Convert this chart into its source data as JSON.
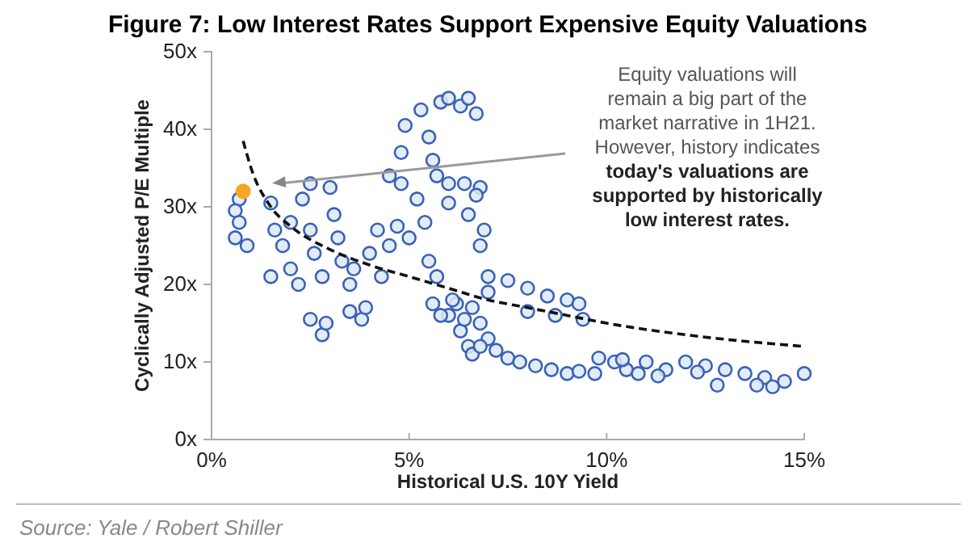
{
  "chart_data": {
    "type": "scatter",
    "title": "Figure 7: Low Interest Rates Support Expensive Equity Valuations",
    "xlabel": "Historical U.S. 10Y Yield",
    "ylabel": "Cyclically Adjusted P/E Multiple",
    "xlim": [
      0,
      15
    ],
    "xticks": [
      {
        "value": 0,
        "label": "0%"
      },
      {
        "value": 5,
        "label": "5%"
      },
      {
        "value": 10,
        "label": "10%"
      },
      {
        "value": 15,
        "label": "15%"
      }
    ],
    "ylim": [
      0,
      50
    ],
    "yticks": [
      {
        "value": 0,
        "label": "0x"
      },
      {
        "value": 10,
        "label": "10x"
      },
      {
        "value": 20,
        "label": "20x"
      },
      {
        "value": 30,
        "label": "30x"
      },
      {
        "value": 40,
        "label": "40x"
      },
      {
        "value": 50,
        "label": "50x"
      }
    ],
    "grid": false,
    "marker": "circle",
    "series": [
      {
        "color": "#3a62b5",
        "x": [
          0.7,
          0.6,
          0.7,
          0.6,
          0.9,
          1.5,
          1.6,
          1.5,
          1.8,
          2,
          2,
          2.2,
          2.3,
          2.5,
          2.5,
          2.6,
          2.8,
          3,
          3.1,
          3.2,
          3.3,
          3.5,
          2.5,
          2.8,
          2.9,
          3.5,
          3.8,
          3.9,
          3.6,
          4,
          4.2,
          4.5,
          4.3,
          4.7,
          4.5,
          4.8,
          4.8,
          4.9,
          5.3,
          5.5,
          5.6,
          5.8,
          6,
          6.3,
          6.5,
          6.7,
          5.2,
          5.4,
          5.7,
          6,
          6.4,
          6.8,
          5,
          5.5,
          6,
          6.5,
          6.9,
          6.7,
          6.8,
          7,
          7.5,
          8,
          8.5,
          9,
          9.3,
          9.4,
          8.7,
          8,
          6.6,
          6.8,
          7,
          7.2,
          7.5,
          7.8,
          8.2,
          8.6,
          9,
          9.3,
          7,
          6.2,
          6,
          6.3,
          6.5,
          6.6,
          5.6,
          5.8,
          6.1,
          6.4,
          6.8,
          5.7,
          9.8,
          10.2,
          10.5,
          11,
          11.5,
          12,
          12.5,
          13,
          13.5,
          14,
          14.5,
          15,
          9.7,
          10.8,
          12.8,
          13.8,
          14.2,
          11.3,
          12.3,
          10.4
        ],
        "values": [
          31,
          29.5,
          28,
          26,
          25,
          30.5,
          27,
          21,
          25,
          28,
          22,
          20,
          31,
          33,
          27,
          24,
          21,
          32.5,
          29,
          26,
          23,
          20,
          15.5,
          13.5,
          15,
          16.5,
          15.5,
          17,
          22,
          24,
          27,
          25,
          21,
          27.5,
          34,
          33,
          37,
          40.5,
          42.5,
          39,
          36,
          43.5,
          44,
          43,
          44,
          42,
          31,
          28,
          34,
          33,
          33,
          32.5,
          26,
          23,
          30.5,
          29,
          27,
          31.5,
          25,
          21,
          20.5,
          19.5,
          18.5,
          18,
          17.5,
          15.5,
          16,
          16.5,
          17,
          15,
          13,
          11.5,
          10.5,
          10,
          9.5,
          9,
          8.5,
          8.8,
          19,
          17.5,
          16,
          14,
          12,
          11,
          17.5,
          16,
          18,
          15.5,
          12,
          21,
          10.5,
          10,
          9,
          10,
          9,
          10,
          9.5,
          9,
          8.5,
          8,
          7.5,
          8.5,
          8.5,
          8.5,
          7,
          7,
          6.8,
          8.2,
          8.7,
          10.3
        ]
      },
      {
        "type": "scatter",
        "color": "#f5a623",
        "x": [
          0.8
        ],
        "values": [
          32
        ]
      },
      {
        "type": "line",
        "color": "#111111",
        "line_style": "dashed",
        "marker": "none",
        "x": [
          0.8,
          1,
          1.5,
          2,
          3,
          4,
          5,
          6,
          7,
          8,
          9,
          10,
          12,
          15
        ],
        "values": [
          38.5,
          35,
          30,
          27.5,
          24.5,
          22.5,
          21,
          19.5,
          18,
          17,
          16,
          15,
          13.5,
          12
        ]
      }
    ],
    "annotations": [
      "Equity valuations will remain a big part of the market narrative in 1H21. However, history indicates",
      "today's valuations are supported by historically low interest rates.",
      "Source: Yale / Robert Shiller"
    ]
  }
}
